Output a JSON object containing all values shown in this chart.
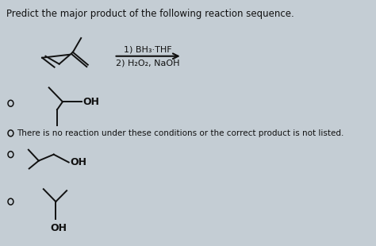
{
  "title": "Predict the major product of the following reaction sequence.",
  "reagents_line1": "1) BH₃·THF",
  "reagents_line2": "2) H₂O₂, NaOH",
  "bg_color": "#c4cdd4",
  "text_color": "#111111",
  "title_fontsize": 8.5,
  "structure_color": "#111111"
}
